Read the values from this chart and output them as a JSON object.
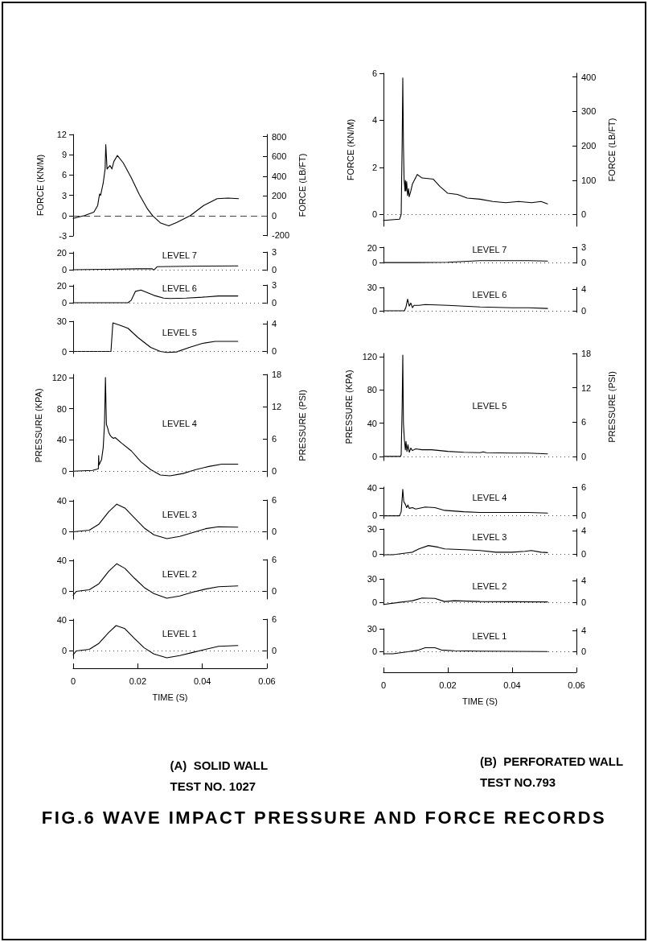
{
  "chart_data": [
    {
      "type": "line",
      "ylabel": "FORCE (KN/M)",
      "y2label": "FORCE (LB/FT)",
      "color": "#000000",
      "marker": "none",
      "tick_labels": "y",
      "xlim": [
        0,
        0.06
      ],
      "ylim": [
        -3,
        12
      ],
      "yticks": [
        -3,
        0,
        3,
        6,
        9,
        12
      ],
      "y2lim": [
        -205,
        822
      ],
      "y2ticks": [
        -200,
        0,
        200,
        400,
        600,
        800
      ],
      "ref_lines": [
        {
          "axis": "y",
          "value": 0,
          "line_style": "dashed"
        }
      ],
      "x": [
        0,
        0.0035,
        0.0064,
        0.0076,
        0.008,
        0.0082,
        0.0085,
        0.0093,
        0.0099,
        0.0101,
        0.0105,
        0.0114,
        0.012,
        0.0126,
        0.0137,
        0.0155,
        0.018,
        0.0205,
        0.023,
        0.0246,
        0.0271,
        0.0296,
        0.0321,
        0.0363,
        0.0404,
        0.0446,
        0.0479,
        0.0512
      ],
      "values": [
        -0.4,
        0,
        0.5,
        1.5,
        2.7,
        3.2,
        3.0,
        4.8,
        6.9,
        10.5,
        6.9,
        7.4,
        6.9,
        8.0,
        8.9,
        7.8,
        5.6,
        3.1,
        1.0,
        0,
        -1.1,
        -1.5,
        -1.0,
        0,
        1.5,
        2.5,
        2.6,
        2.5
      ]
    },
    {
      "type": "line",
      "title": "LEVEL 7",
      "color": "#000000",
      "marker": "none",
      "tick_labels": "y",
      "xlim": [
        0,
        0.06
      ],
      "ylim": [
        -1,
        21
      ],
      "yticks": [
        0,
        20
      ],
      "y2lim": [
        -0.15,
        3.05
      ],
      "y2ticks": [
        0,
        3
      ],
      "ref_lines": [
        {
          "axis": "y",
          "value": 0,
          "line_style": "dotted"
        }
      ],
      "x": [
        0,
        0.01,
        0.02,
        0.0245,
        0.025,
        0.026,
        0.03,
        0.04,
        0.051
      ],
      "values": [
        0,
        0.5,
        1,
        1,
        -0.5,
        3.5,
        3.8,
        4.2,
        4.5
      ]
    },
    {
      "type": "line",
      "title": "LEVEL 6",
      "color": "#000000",
      "marker": "none",
      "tick_labels": "y",
      "xlim": [
        0,
        0.06
      ],
      "ylim": [
        -1,
        21
      ],
      "yticks": [
        0,
        20
      ],
      "y2lim": [
        -0.15,
        3.05
      ],
      "y2ticks": [
        0,
        3
      ],
      "ref_lines": [
        {
          "axis": "y",
          "value": 0,
          "line_style": "dotted"
        }
      ],
      "x": [
        0,
        0.017,
        0.018,
        0.0193,
        0.021,
        0.023,
        0.025,
        0.028,
        0.03,
        0.035,
        0.04,
        0.045,
        0.051
      ],
      "values": [
        0,
        0,
        3,
        13.5,
        15,
        12,
        8.7,
        5.5,
        5,
        5.5,
        6.5,
        8,
        8
      ]
    },
    {
      "type": "line",
      "title": "LEVEL 5",
      "color": "#000000",
      "marker": "none",
      "tick_labels": "y",
      "xlim": [
        0,
        0.06
      ],
      "ylim": [
        -2,
        30
      ],
      "yticks": [
        0,
        30
      ],
      "y2lim": [
        -0.3,
        4.35
      ],
      "y2ticks": [
        0,
        4
      ],
      "ref_lines": [
        {
          "axis": "y",
          "value": 0,
          "line_style": "dotted"
        }
      ],
      "x": [
        0,
        0.0117,
        0.0123,
        0.0145,
        0.017,
        0.02,
        0.024,
        0.027,
        0.029,
        0.032,
        0.036,
        0.04,
        0.044,
        0.051
      ],
      "values": [
        0,
        0,
        28.4,
        26,
        23,
        14,
        4,
        0,
        -1,
        -0.5,
        4,
        8,
        10,
        10
      ]
    },
    {
      "type": "line",
      "title": "LEVEL 4",
      "ylabel": "PRESSURE (KPA)",
      "y2label": "PRESSURE (PSI)",
      "color": "#000000",
      "marker": "none",
      "tick_labels": "y",
      "xlim": [
        0,
        0.06
      ],
      "ylim": [
        -7,
        124
      ],
      "yticks": [
        0,
        40,
        80,
        120
      ],
      "y2lim": [
        -1,
        18
      ],
      "y2ticks": [
        0,
        6,
        12,
        18
      ],
      "ref_lines": [
        {
          "axis": "y",
          "value": 0,
          "line_style": "dotted"
        }
      ],
      "x": [
        0,
        0.006,
        0.0078,
        0.0079,
        0.008,
        0.0088,
        0.0093,
        0.0097,
        0.01,
        0.0103,
        0.0107,
        0.011,
        0.0113,
        0.0118,
        0.0125,
        0.013,
        0.015,
        0.018,
        0.021,
        0.024,
        0.027,
        0.03,
        0.034,
        0.038,
        0.042,
        0.046,
        0.051
      ],
      "values": [
        0,
        1,
        3,
        20,
        8,
        15,
        30,
        60,
        120,
        60,
        55,
        50,
        47,
        44,
        42,
        43,
        36,
        26,
        12,
        2,
        -5,
        -6,
        -3,
        2,
        6,
        9,
        9
      ]
    },
    {
      "type": "line",
      "title": "LEVEL 3",
      "color": "#000000",
      "marker": "none",
      "tick_labels": "y",
      "xlim": [
        0,
        0.06
      ],
      "ylim": [
        -10,
        41.4
      ],
      "yticks": [
        0,
        40
      ],
      "y2lim": [
        -1.45,
        6
      ],
      "y2ticks": [
        0,
        6
      ],
      "ref_lines": [
        {
          "axis": "y",
          "value": 0,
          "line_style": "dotted"
        }
      ],
      "x": [
        0,
        0.005,
        0.008,
        0.011,
        0.0135,
        0.016,
        0.019,
        0.022,
        0.025,
        0.029,
        0.033,
        0.037,
        0.041,
        0.045,
        0.051
      ],
      "values": [
        0,
        2,
        10,
        26,
        36,
        31,
        18,
        5,
        -4,
        -9,
        -6,
        -1,
        4,
        6.5,
        6
      ]
    },
    {
      "type": "line",
      "title": "LEVEL 2",
      "color": "#000000",
      "marker": "none",
      "tick_labels": "y",
      "xlim": [
        0,
        0.06
      ],
      "ylim": [
        -10,
        41.4
      ],
      "yticks": [
        0,
        40
      ],
      "y2lim": [
        -1.45,
        6
      ],
      "y2ticks": [
        0,
        6
      ],
      "ref_lines": [
        {
          "axis": "y",
          "value": 0,
          "line_style": "dotted"
        }
      ],
      "x": [
        0,
        0.001,
        0.005,
        0.008,
        0.011,
        0.0135,
        0.016,
        0.019,
        0.022,
        0.025,
        0.029,
        0.033,
        0.037,
        0.041,
        0.045,
        0.051
      ],
      "values": [
        -5,
        0,
        2,
        10,
        26,
        36,
        30,
        17,
        5,
        -3,
        -9,
        -6,
        -1,
        3,
        6,
        7
      ]
    },
    {
      "type": "line",
      "title": "LEVEL 1",
      "xlabel": "TIME (S)",
      "annotations": [
        "(A)  SOLID WALL",
        "TEST NO. 1027"
      ],
      "color": "#000000",
      "marker": "none",
      "xlim": [
        0,
        0.06
      ],
      "xticks": [
        0,
        0.02,
        0.04,
        0.06
      ],
      "ylim": [
        -10,
        41.4
      ],
      "yticks": [
        0,
        40
      ],
      "y2lim": [
        -1.45,
        6
      ],
      "y2ticks": [
        0,
        6
      ],
      "ref_lines": [
        {
          "axis": "y",
          "value": 0,
          "line_style": "dotted"
        }
      ],
      "x": [
        0,
        0.001,
        0.005,
        0.008,
        0.011,
        0.0133,
        0.016,
        0.019,
        0.022,
        0.025,
        0.029,
        0.033,
        0.037,
        0.041,
        0.045,
        0.051
      ],
      "values": [
        -5,
        0,
        2,
        10,
        24,
        33,
        29,
        16,
        4,
        -4,
        -9,
        -6,
        -2,
        2,
        6,
        7
      ]
    },
    {
      "type": "line",
      "ylabel": "FORCE (KN/M)",
      "y2label": "FORCE (LB/FT)",
      "color": "#000000",
      "marker": "none",
      "tick_labels": "y",
      "xlim": [
        0,
        0.06
      ],
      "ylim": [
        -0.5,
        6
      ],
      "yticks": [
        0,
        2,
        4,
        6
      ],
      "y2lim": [
        -34,
        411
      ],
      "y2ticks": [
        0,
        100,
        200,
        300,
        400
      ],
      "ref_lines": [
        {
          "axis": "y",
          "value": 0,
          "line_style": "dotted"
        }
      ],
      "x": [
        0,
        0.005,
        0.0055,
        0.0058,
        0.006,
        0.0062,
        0.0064,
        0.0067,
        0.0068,
        0.007,
        0.0072,
        0.0075,
        0.0078,
        0.008,
        0.0085,
        0.009,
        0.0105,
        0.012,
        0.0155,
        0.0175,
        0.02,
        0.023,
        0.026,
        0.03,
        0.034,
        0.038,
        0.042,
        0.046,
        0.049,
        0.051
      ],
      "values": [
        -0.25,
        -0.2,
        0,
        3,
        5.8,
        3,
        1.5,
        1.0,
        1.45,
        1.0,
        1.4,
        0.8,
        1.1,
        0.75,
        1.0,
        1.3,
        1.7,
        1.55,
        1.5,
        1.2,
        0.9,
        0.85,
        0.7,
        0.65,
        0.55,
        0.5,
        0.55,
        0.5,
        0.55,
        0.45
      ]
    },
    {
      "type": "line",
      "title": "LEVEL 7",
      "color": "#000000",
      "marker": "none",
      "tick_labels": "y",
      "xlim": [
        0,
        0.06
      ],
      "ylim": [
        -1,
        20.7
      ],
      "yticks": [
        0,
        20
      ],
      "y2lim": [
        -0.15,
        3
      ],
      "y2ticks": [
        0,
        3
      ],
      "ref_lines": [
        {
          "axis": "y",
          "value": 0,
          "line_style": "dotted"
        }
      ],
      "x": [
        0,
        0.01,
        0.02,
        0.025,
        0.03,
        0.04,
        0.045,
        0.051
      ],
      "values": [
        0,
        0,
        0.3,
        1.5,
        2.5,
        2.5,
        2.5,
        2
      ]
    },
    {
      "type": "line",
      "title": "LEVEL 6",
      "color": "#000000",
      "marker": "none",
      "tick_labels": "y",
      "xlim": [
        0,
        0.06
      ],
      "ylim": [
        -2,
        30
      ],
      "yticks": [
        0,
        30
      ],
      "y2lim": [
        -0.3,
        4.35
      ],
      "y2ticks": [
        0,
        4
      ],
      "ref_lines": [
        {
          "axis": "y",
          "value": 0,
          "line_style": "dotted"
        }
      ],
      "x": [
        0,
        0.0065,
        0.007,
        0.0075,
        0.008,
        0.0085,
        0.009,
        0.0095,
        0.011,
        0.013,
        0.02,
        0.025,
        0.03,
        0.04,
        0.045,
        0.051
      ],
      "values": [
        0,
        0,
        5,
        15,
        6,
        10,
        4,
        7,
        7,
        8,
        7,
        6,
        5,
        4,
        4,
        3
      ]
    },
    {
      "type": "line",
      "title": "LEVEL 5",
      "ylabel": "PRESSURE (KPA)",
      "y2label": "PRESSURE (PSI)",
      "color": "#000000",
      "marker": "none",
      "tick_labels": "y",
      "xlim": [
        0,
        0.06
      ],
      "ylim": [
        -5,
        124
      ],
      "yticks": [
        0,
        40,
        80,
        120
      ],
      "y2lim": [
        -0.7,
        18
      ],
      "y2ticks": [
        0,
        6,
        12,
        18
      ],
      "ref_lines": [
        {
          "axis": "y",
          "value": 0,
          "line_style": "dotted"
        }
      ],
      "x": [
        0,
        0.0053,
        0.0055,
        0.0058,
        0.006,
        0.0062,
        0.0065,
        0.0068,
        0.007,
        0.0073,
        0.0076,
        0.008,
        0.0085,
        0.009,
        0.01,
        0.012,
        0.015,
        0.02,
        0.025,
        0.03,
        0.031,
        0.032,
        0.04,
        0.045,
        0.051
      ],
      "values": [
        0,
        0,
        2,
        60,
        122,
        40,
        20,
        8,
        18,
        6,
        14,
        5,
        10,
        7,
        9,
        8,
        8,
        6,
        5,
        4.5,
        5.5,
        4.5,
        4,
        4,
        3
      ]
    },
    {
      "type": "line",
      "title": "LEVEL 4",
      "color": "#000000",
      "marker": "none",
      "tick_labels": "y",
      "xlim": [
        0,
        0.06
      ],
      "ylim": [
        -5,
        41.4
      ],
      "yticks": [
        0,
        40
      ],
      "y2lim": [
        -0.7,
        6
      ],
      "y2ticks": [
        0,
        6
      ],
      "ref_lines": [
        {
          "axis": "y",
          "value": 0,
          "line_style": "dotted"
        }
      ],
      "x": [
        0,
        0.005,
        0.0055,
        0.006,
        0.0063,
        0.0068,
        0.0072,
        0.0076,
        0.008,
        0.009,
        0.01,
        0.013,
        0.016,
        0.019,
        0.025,
        0.03,
        0.04,
        0.045,
        0.051
      ],
      "values": [
        -1,
        -1,
        5,
        38,
        20,
        16,
        11,
        15,
        10,
        11,
        9,
        12,
        11,
        7,
        5,
        4,
        4,
        4,
        3
      ]
    },
    {
      "type": "line",
      "title": "LEVEL 3",
      "color": "#000000",
      "marker": "none",
      "tick_labels": "y",
      "xlim": [
        0,
        0.06
      ],
      "ylim": [
        -3,
        30
      ],
      "yticks": [
        0,
        30
      ],
      "y2lim": [
        -0.45,
        4.35
      ],
      "y2ticks": [
        0,
        4
      ],
      "ref_lines": [
        {
          "axis": "y",
          "value": 0,
          "line_style": "dotted"
        }
      ],
      "x": [
        0,
        0.003,
        0.009,
        0.011,
        0.014,
        0.017,
        0.019,
        0.025,
        0.03,
        0.035,
        0.04,
        0.044,
        0.046,
        0.049,
        0.051
      ],
      "values": [
        -1,
        -1,
        2,
        6,
        10,
        8,
        6,
        5,
        4,
        2,
        2,
        3,
        4,
        2,
        1.5
      ]
    },
    {
      "type": "line",
      "title": "LEVEL 2",
      "color": "#000000",
      "marker": "none",
      "tick_labels": "y",
      "xlim": [
        0,
        0.06
      ],
      "ylim": [
        -3,
        30
      ],
      "yticks": [
        0,
        30
      ],
      "y2lim": [
        -0.45,
        4.35
      ],
      "y2ticks": [
        0,
        4
      ],
      "ref_lines": [
        {
          "axis": "y",
          "value": 0,
          "line_style": "dotted"
        }
      ],
      "x": [
        0,
        0.005,
        0.009,
        0.012,
        0.016,
        0.019,
        0.022,
        0.03,
        0.051
      ],
      "values": [
        -2.7,
        0,
        2,
        5.5,
        5,
        1,
        2,
        1,
        0.5
      ]
    },
    {
      "type": "line",
      "title": "LEVEL 1",
      "xlabel": "TIME (S)",
      "annotations": [
        "(B)  PERFORATED WALL",
        "TEST NO.793"
      ],
      "color": "#000000",
      "marker": "none",
      "xlim": [
        0,
        0.06
      ],
      "xticks": [
        0,
        0.02,
        0.04,
        0.06
      ],
      "ylim": [
        -4,
        30
      ],
      "yticks": [
        0,
        30
      ],
      "y2lim": [
        -0.6,
        4.35
      ],
      "y2ticks": [
        0,
        4
      ],
      "ref_lines": [
        {
          "axis": "y",
          "value": 0,
          "line_style": "dotted"
        }
      ],
      "x": [
        0,
        0.003,
        0.008,
        0.011,
        0.013,
        0.016,
        0.018,
        0.022,
        0.03,
        0.051
      ],
      "values": [
        -3,
        -3,
        0,
        2,
        5,
        5,
        2,
        1,
        0.5,
        0
      ]
    },
    {
      "type": "other",
      "title": "FIG.6  WAVE IMPACT PRESSURE AND FORCE RECORDS"
    }
  ]
}
